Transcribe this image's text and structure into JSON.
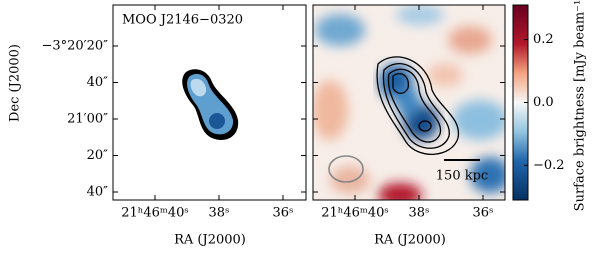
{
  "chart_data": {
    "type": "sky-map",
    "title": "MOO J2146−0320",
    "x_label": "RA (J2000)",
    "y_label": "Dec (J2000)",
    "xticks": [
      "21ʰ46ᵐ40ˢ",
      "38ˢ",
      "36ˢ"
    ],
    "yticks": [
      "−3°20′20″",
      "40″",
      "21′00″",
      "20″",
      "40″"
    ],
    "scale_bar_label": "150 kpc",
    "colorbar": {
      "label": "Surface brightness [mJy beam⁻¹]",
      "ylim": [
        -0.31,
        0.31
      ],
      "yticks": [
        {
          "value": -0.2,
          "label": "−0.2"
        },
        {
          "value": 0,
          "label": "0.0"
        },
        {
          "value": 0.2,
          "label": "0.2"
        }
      ]
    }
  }
}
